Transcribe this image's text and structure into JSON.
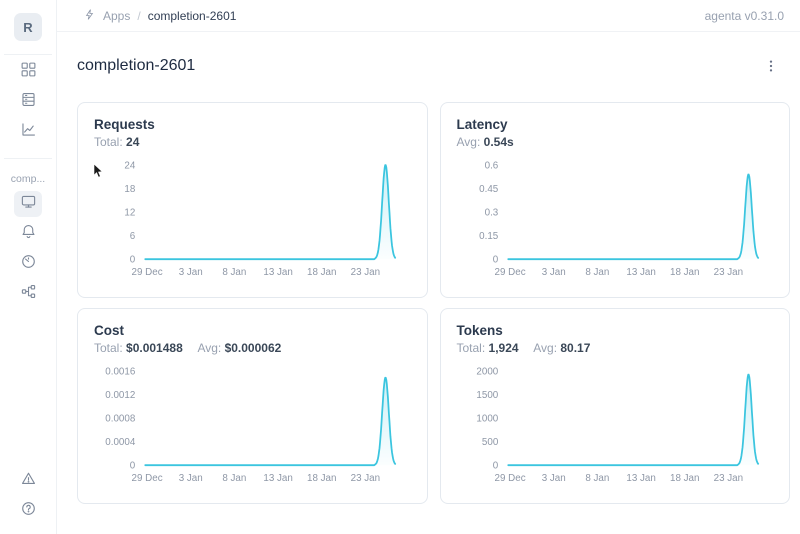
{
  "header": {
    "logo_letter": "R",
    "breadcrumb": {
      "icon": "lightning-icon",
      "items": [
        "Apps",
        "completion-2601"
      ],
      "separator": "/"
    },
    "version": "agenta v0.31.0"
  },
  "sidebar": {
    "project_label": "comp...",
    "top_icons": [
      "apps-grid-icon",
      "registry-table-icon",
      "evaluations-chart-icon"
    ],
    "project_icons": [
      "overview-monitor-icon",
      "alerts-bell-icon",
      "observability-gauge-icon",
      "traces-tree-icon"
    ],
    "active_icon": "overview-monitor-icon",
    "bottom_icons": [
      "changelog-triangle-icon",
      "help-question-icon"
    ]
  },
  "page": {
    "title": "completion-2601",
    "menu_icon": "kebab-menu-icon"
  },
  "theme": {
    "accent": "#3bc5df",
    "text_dark": "#1e2b41",
    "text_gray": "#98a1b0",
    "border": "#e4e9ef"
  },
  "chart_data": [
    {
      "type": "area",
      "title": "Requests",
      "stats": [
        {
          "label": "Total:",
          "value": "24"
        }
      ],
      "categories": [
        "29 Dec",
        "3 Jan",
        "8 Jan",
        "13 Jan",
        "18 Jan",
        "23 Jan"
      ],
      "yticks": [
        0,
        6,
        12,
        18,
        24
      ],
      "ylim": [
        0,
        24
      ],
      "grid": false,
      "legend": false,
      "series": [
        {
          "name": "requests",
          "shape": "flat-zero-with-spike",
          "baseline_value": 0,
          "peak_value": 24,
          "peak_x_frac": 0.927
        }
      ]
    },
    {
      "type": "area",
      "title": "Latency",
      "stats": [
        {
          "label": "Avg:",
          "value": "0.54s"
        }
      ],
      "categories": [
        "29 Dec",
        "3 Jan",
        "8 Jan",
        "13 Jan",
        "18 Jan",
        "23 Jan"
      ],
      "yticks": [
        0,
        0.15,
        0.3,
        0.45,
        0.6
      ],
      "ylim": [
        0,
        0.6
      ],
      "grid": false,
      "legend": false,
      "series": [
        {
          "name": "latency",
          "shape": "flat-zero-with-spike",
          "baseline_value": 0,
          "peak_value": 0.54,
          "peak_x_frac": 0.927
        }
      ]
    },
    {
      "type": "area",
      "title": "Cost",
      "stats": [
        {
          "label": "Total:",
          "value": "$0.001488"
        },
        {
          "label": "Avg:",
          "value": "$0.000062"
        }
      ],
      "categories": [
        "29 Dec",
        "3 Jan",
        "8 Jan",
        "13 Jan",
        "18 Jan",
        "23 Jan"
      ],
      "yticks": [
        0,
        0.0004,
        0.0008,
        0.0012,
        0.0016
      ],
      "ylim": [
        0,
        0.0016
      ],
      "grid": false,
      "legend": false,
      "series": [
        {
          "name": "cost",
          "shape": "flat-zero-with-spike",
          "baseline_value": 0,
          "peak_value": 0.001488,
          "peak_x_frac": 0.927
        }
      ]
    },
    {
      "type": "area",
      "title": "Tokens",
      "stats": [
        {
          "label": "Total:",
          "value": "1,924"
        },
        {
          "label": "Avg:",
          "value": "80.17"
        }
      ],
      "categories": [
        "29 Dec",
        "3 Jan",
        "8 Jan",
        "13 Jan",
        "18 Jan",
        "23 Jan"
      ],
      "yticks": [
        0,
        500,
        1000,
        1500,
        2000
      ],
      "ylim": [
        0,
        2000
      ],
      "grid": false,
      "legend": false,
      "series": [
        {
          "name": "tokens",
          "shape": "flat-zero-with-spike",
          "baseline_value": 0,
          "peak_value": 1924,
          "peak_x_frac": 0.927
        }
      ]
    }
  ]
}
